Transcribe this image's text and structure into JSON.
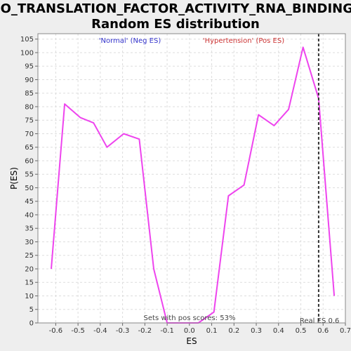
{
  "chart_data": {
    "type": "line",
    "title_line1": "GO_TRANSLATION_FACTOR_ACTIVITY_RNA_BINDING:",
    "title_line2": "Random ES distribution",
    "xlabel": "ES",
    "ylabel": "P(ES)",
    "xlim": [
      -0.68,
      0.7
    ],
    "ylim": [
      0,
      107
    ],
    "xticks": [
      "-0.6",
      "-0.5",
      "-0.4",
      "-0.3",
      "-0.2",
      "-0.1",
      "0.0",
      "0.1",
      "0.2",
      "0.3",
      "0.4",
      "0.5",
      "0.6",
      "0.7"
    ],
    "xtick_values": [
      -0.6,
      -0.5,
      -0.4,
      -0.3,
      -0.2,
      -0.1,
      0.0,
      0.1,
      0.2,
      0.3,
      0.4,
      0.5,
      0.6,
      0.7
    ],
    "yticks": [
      0,
      5,
      10,
      15,
      20,
      25,
      30,
      35,
      40,
      45,
      50,
      55,
      60,
      65,
      70,
      75,
      80,
      85,
      90,
      95,
      100,
      105
    ],
    "grid": true,
    "series": [
      {
        "color": "#ee44ee",
        "x": [
          -0.62,
          -0.56,
          -0.49,
          -0.43,
          -0.37,
          -0.295,
          -0.225,
          -0.16,
          -0.1,
          -0.03,
          0.04,
          0.11,
          0.175,
          0.245,
          0.31,
          0.38,
          0.445,
          0.51,
          0.58,
          0.65
        ],
        "y": [
          20,
          81,
          76,
          74,
          65,
          70,
          68,
          20,
          0,
          0,
          0,
          4,
          47,
          51,
          77,
          73,
          79,
          102,
          83,
          10
        ]
      }
    ],
    "real_es": 0.58,
    "real_es_label": "Real ES 0.6",
    "legend_neg": "'Normal' (Neg ES)",
    "legend_pos": "'Hypertension' (Pos ES)",
    "legend_neg_color": "#3333cc",
    "legend_pos_color": "#cc3333",
    "pos_scores_text": "Sets with pos scores: 53%"
  }
}
